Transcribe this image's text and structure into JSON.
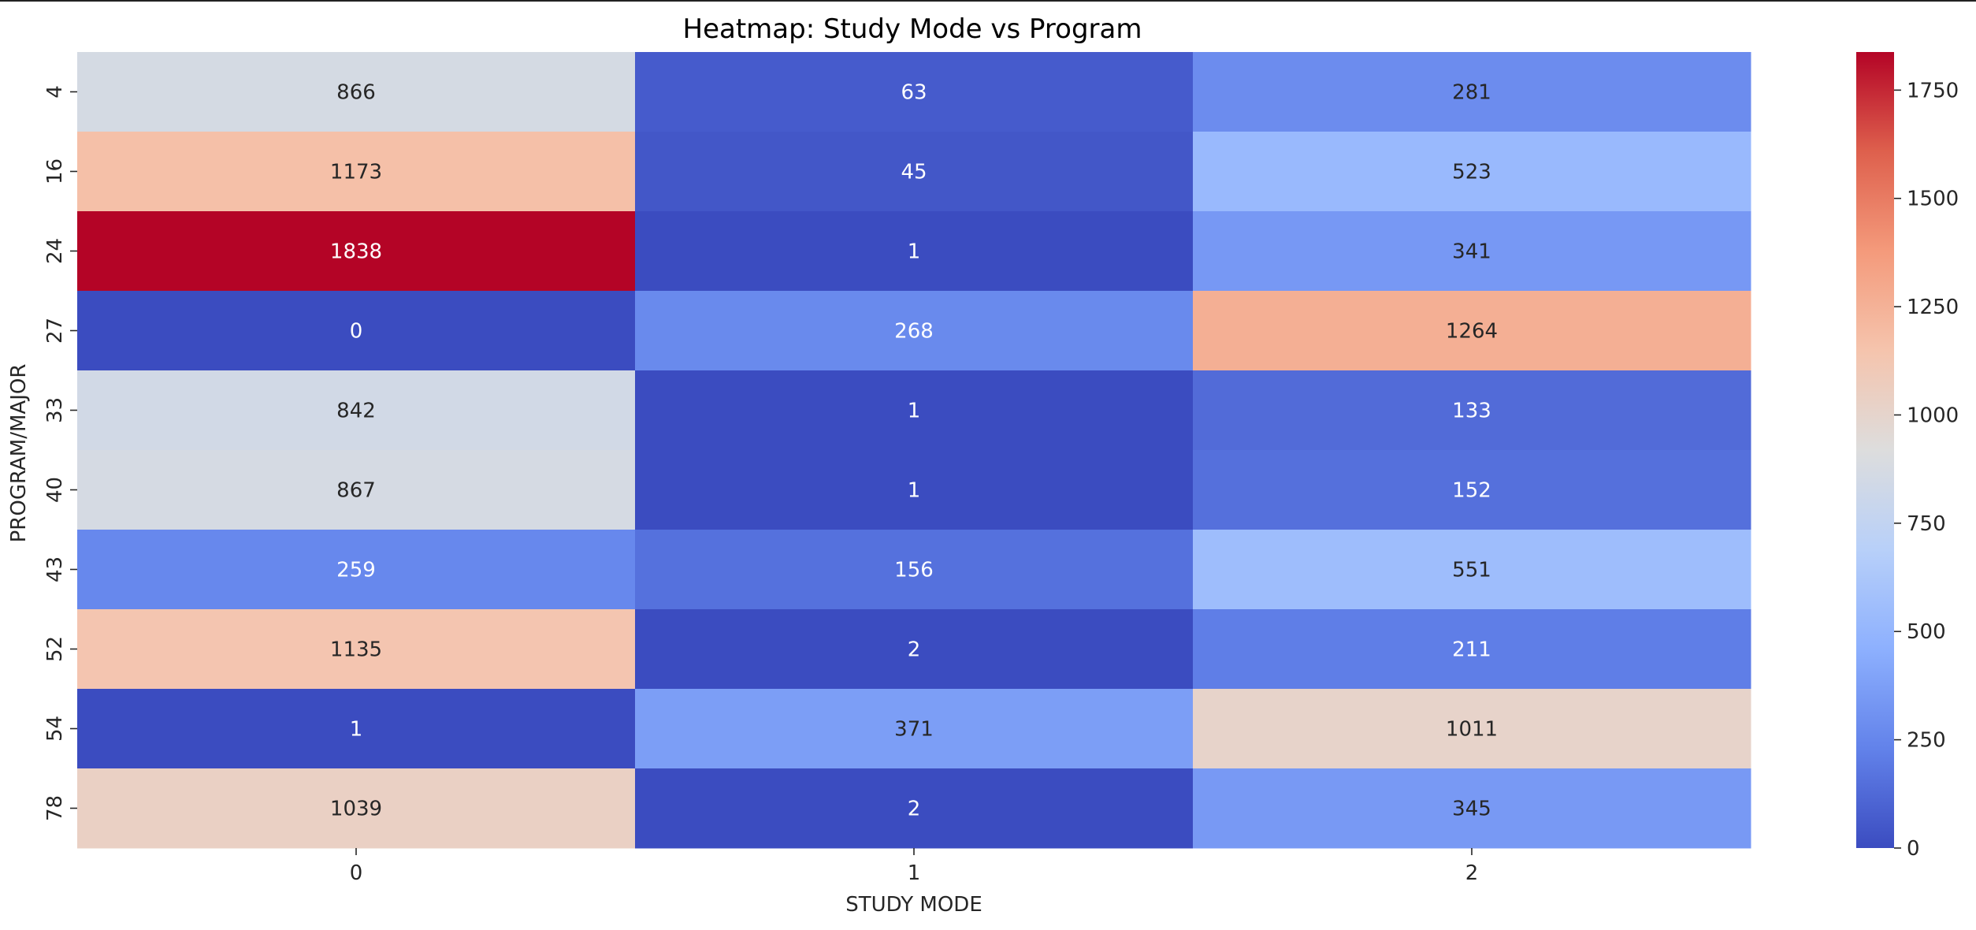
{
  "chart_data": {
    "type": "heatmap",
    "title": "Heatmap: Study Mode vs Program",
    "xlabel": "STUDY MODE",
    "ylabel": "PROGRAM/MAJOR",
    "x_categories": [
      "0",
      "1",
      "2"
    ],
    "y_categories": [
      "4",
      "16",
      "24",
      "27",
      "33",
      "40",
      "43",
      "52",
      "54",
      "78"
    ],
    "values": [
      [
        866,
        63,
        281
      ],
      [
        1173,
        45,
        523
      ],
      [
        1838,
        1,
        341
      ],
      [
        0,
        268,
        1264
      ],
      [
        842,
        1,
        133
      ],
      [
        867,
        1,
        152
      ],
      [
        259,
        156,
        551
      ],
      [
        1135,
        2,
        211
      ],
      [
        1,
        371,
        1011
      ],
      [
        1039,
        2,
        345
      ]
    ],
    "colormap": "coolwarm",
    "vmin": 0,
    "vmax": 1838,
    "colorbar_ticks": [
      0,
      250,
      500,
      750,
      1000,
      1250,
      1500,
      1750
    ],
    "annotated": true,
    "colors": {
      "low": "#3b4cc0",
      "mid": "#dddddd",
      "high": "#b40426",
      "text_dark": "#262626",
      "text_light": "#ffffff"
    }
  }
}
